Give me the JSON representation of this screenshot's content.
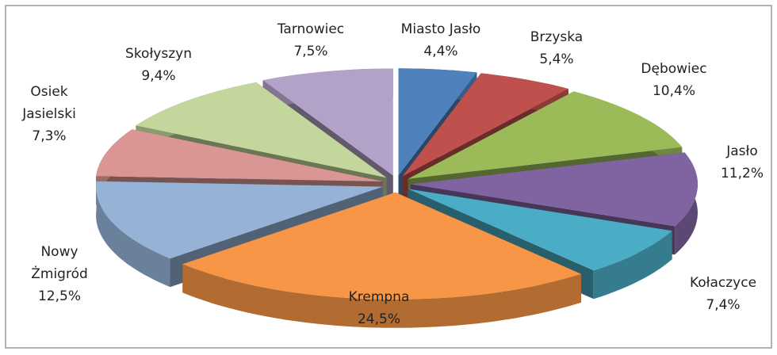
{
  "chart_data": {
    "type": "pie",
    "categories": [
      "Miasto Jasło",
      "Brzyska",
      "Dębowiec",
      "Jasło",
      "Kołaczyce",
      "Krempna",
      "Nowy Żmigród",
      "Osiek Jasielski",
      "Skołyszyn",
      "Tarnowiec"
    ],
    "values": [
      4.4,
      5.4,
      10.4,
      11.2,
      7.4,
      24.5,
      12.5,
      7.3,
      9.4,
      7.5
    ],
    "value_labels": [
      "4,4%",
      "5,4%",
      "10,4%",
      "11,2%",
      "7,4%",
      "24,5%",
      "12,5%",
      "7,3%",
      "9,4%",
      "7,5%"
    ],
    "colors": [
      "#4f81bd",
      "#c0504d",
      "#9bbb59",
      "#8064a2",
      "#4bacc6",
      "#f79646",
      "#95b3d7",
      "#d99694",
      "#c3d69b",
      "#b3a2c7"
    ]
  }
}
